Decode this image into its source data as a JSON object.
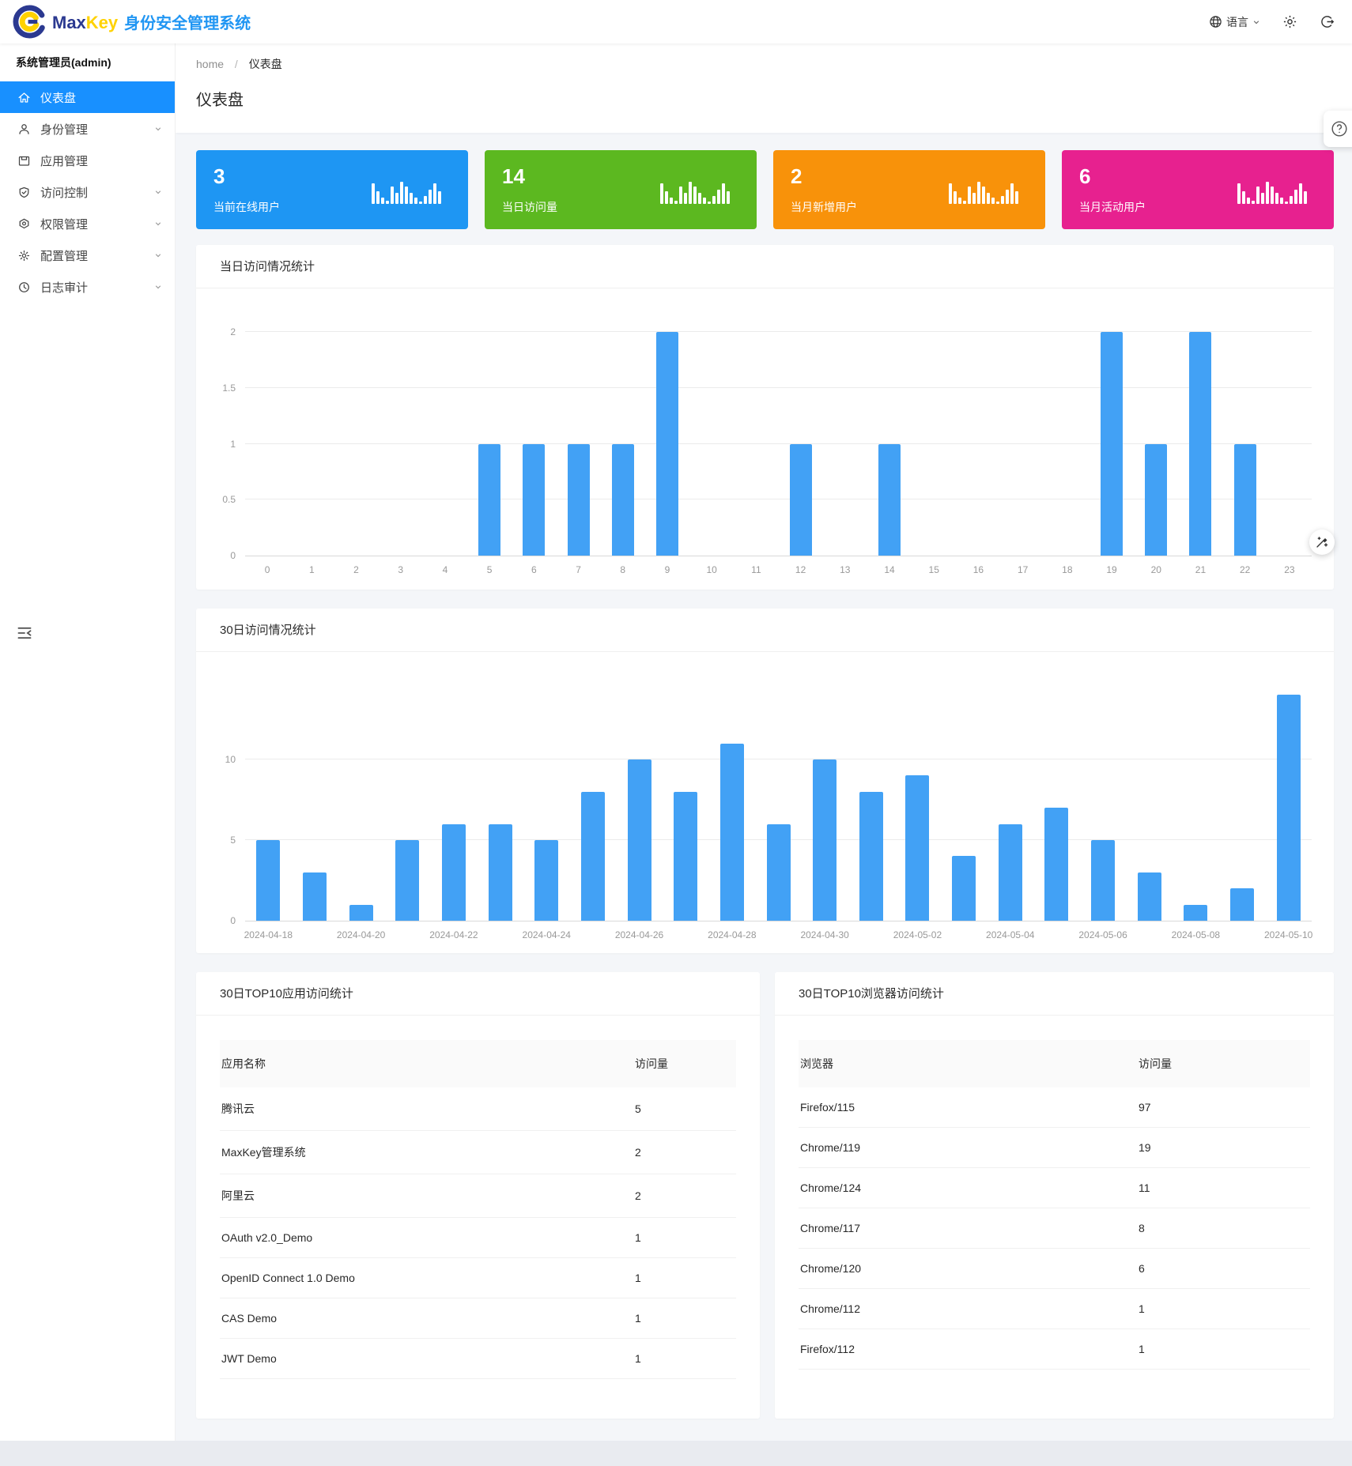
{
  "header": {
    "brand_max": "Max",
    "brand_key": "Key",
    "brand_suffix": "身份安全管理系统",
    "language_label": "语言"
  },
  "sidebar": {
    "user": "系统管理员(admin)",
    "items": [
      {
        "label": "仪表盘",
        "icon": "dashboard-home-icon",
        "active": true,
        "chevron": false
      },
      {
        "label": "身份管理",
        "icon": "identity-user-icon",
        "active": false,
        "chevron": true
      },
      {
        "label": "应用管理",
        "icon": "app-window-icon",
        "active": false,
        "chevron": false
      },
      {
        "label": "访问控制",
        "icon": "access-shield-icon",
        "active": false,
        "chevron": true
      },
      {
        "label": "权限管理",
        "icon": "permission-badge-icon",
        "active": false,
        "chevron": true
      },
      {
        "label": "配置管理",
        "icon": "config-gear-icon",
        "active": false,
        "chevron": true
      },
      {
        "label": "日志审计",
        "icon": "audit-clock-icon",
        "active": false,
        "chevron": true
      }
    ]
  },
  "breadcrumb": {
    "home": "home",
    "separator": "/",
    "current": "仪表盘"
  },
  "page_title": "仪表盘",
  "stat_cards": [
    {
      "value": "3",
      "label": "当前在线用户",
      "color": "#1e96f3",
      "icon": "bar-chart-icon"
    },
    {
      "value": "14",
      "label": "当日访问量",
      "color": "#5cb820",
      "icon": "bar-chart-icon"
    },
    {
      "value": "2",
      "label": "当月新增用户",
      "color": "#f8920a",
      "icon": "bar-chart-icon"
    },
    {
      "value": "6",
      "label": "当月活动用户",
      "color": "#e7218f",
      "icon": "bar-chart-icon"
    }
  ],
  "chart_data": [
    {
      "type": "bar",
      "title": "当日访问情况统计",
      "categories": [
        "0",
        "1",
        "2",
        "3",
        "4",
        "5",
        "6",
        "7",
        "8",
        "9",
        "10",
        "11",
        "12",
        "13",
        "14",
        "15",
        "16",
        "17",
        "18",
        "19",
        "20",
        "21",
        "22",
        "23"
      ],
      "values": [
        0,
        0,
        0,
        0,
        0,
        1,
        1,
        1,
        1,
        2,
        0,
        0,
        1,
        0,
        1,
        0,
        0,
        0,
        0,
        2,
        1,
        2,
        1,
        0
      ],
      "xlabel": "",
      "ylabel": "",
      "ylim": [
        0,
        2
      ],
      "yticks": [
        0,
        0.5,
        1,
        1.5,
        2
      ],
      "label_every": 1,
      "bar_color": "#42a1f5",
      "grid": true,
      "legend": "none"
    },
    {
      "type": "bar",
      "title": "30日访问情况统计",
      "categories": [
        "2024-04-18",
        "2024-04-19",
        "2024-04-20",
        "2024-04-21",
        "2024-04-22",
        "2024-04-23",
        "2024-04-24",
        "2024-04-25",
        "2024-04-26",
        "2024-04-27",
        "2024-04-28",
        "2024-04-29",
        "2024-04-30",
        "2024-05-01",
        "2024-05-02",
        "2024-05-03",
        "2024-05-04",
        "2024-05-05",
        "2024-05-06",
        "2024-05-07",
        "2024-05-08",
        "2024-05-09",
        "2024-05-10"
      ],
      "values": [
        5,
        3,
        1,
        5,
        6,
        6,
        5,
        8,
        10,
        8,
        11,
        6,
        10,
        8,
        9,
        4,
        6,
        7,
        5,
        3,
        1,
        2,
        14
      ],
      "xlabel": "",
      "ylabel": "",
      "ylim": [
        0,
        15
      ],
      "yticks": [
        0,
        5,
        10
      ],
      "label_every": 2,
      "bar_color": "#42a1f5",
      "grid": true,
      "legend": "none"
    }
  ],
  "tables": [
    {
      "title": "30日TOP10应用访问统计",
      "columns": [
        "应用名称",
        "访问量"
      ],
      "rows": [
        [
          "腾讯云",
          "5"
        ],
        [
          "MaxKey管理系统",
          "2"
        ],
        [
          "阿里云",
          "2"
        ],
        [
          "OAuth v2.0_Demo",
          "1"
        ],
        [
          "OpenID Connect 1.0 Demo",
          "1"
        ],
        [
          "CAS Demo",
          "1"
        ],
        [
          "JWT Demo",
          "1"
        ]
      ]
    },
    {
      "title": "30日TOP10浏览器访问统计",
      "columns": [
        "浏览器",
        "访问量"
      ],
      "rows": [
        [
          "Firefox/115",
          "97"
        ],
        [
          "Chrome/119",
          "19"
        ],
        [
          "Chrome/124",
          "11"
        ],
        [
          "Chrome/117",
          "8"
        ],
        [
          "Chrome/120",
          "6"
        ],
        [
          "Chrome/112",
          "1"
        ],
        [
          "Firefox/112",
          "1"
        ]
      ]
    }
  ],
  "floating": {
    "help_icon": "help-circle-icon",
    "tool_icon": "magic-wand-icon"
  },
  "colors": {
    "accent": "#1890ff",
    "bar": "#42a1f5",
    "card_blue": "#1e96f3",
    "card_green": "#5cb820",
    "card_orange": "#f8920a",
    "card_pink": "#e7218f"
  }
}
